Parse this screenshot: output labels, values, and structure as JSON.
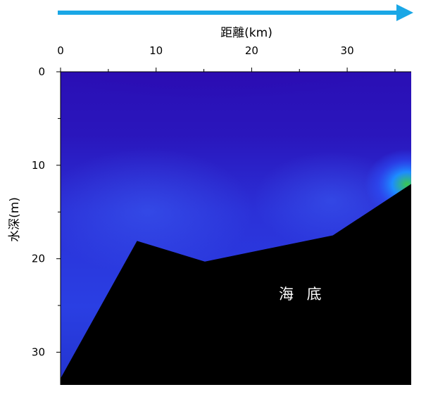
{
  "chart_data": {
    "type": "heatmap",
    "xlabel": "距離(km)",
    "ylabel": "水深(m)",
    "x_ticks": [
      0,
      10,
      20,
      30
    ],
    "y_ticks": [
      0,
      10,
      20,
      30
    ],
    "xlim": [
      0,
      36.7
    ],
    "ylim": [
      0,
      33.5
    ],
    "y_inverted": true,
    "x_axis_position": "top",
    "direction_arrow": "left-to-right",
    "colors": {
      "arrow": "#1aa7e6",
      "background_water": "#2a12b8",
      "seabed": "#000000",
      "seabed_label": "#ffffff"
    },
    "seabed_profile": [
      {
        "x": 0,
        "y": 32.8
      },
      {
        "x": 8,
        "y": 18.1
      },
      {
        "x": 15.1,
        "y": 20.3
      },
      {
        "x": 28.5,
        "y": 17.5
      },
      {
        "x": 36.7,
        "y": 12.0
      }
    ],
    "annotations": [
      {
        "text": "海 底",
        "x": 25.3,
        "y": 24.3
      }
    ]
  }
}
